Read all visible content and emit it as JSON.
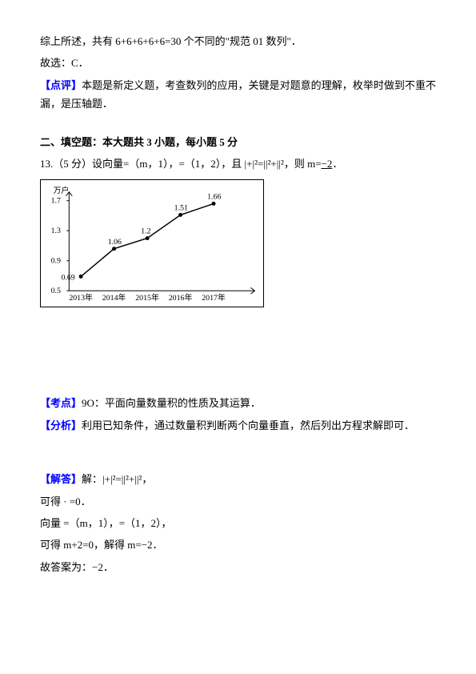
{
  "p1": "综上所述，共有 6+6+6+6+6=30 个不同的\"规范 01 数列\"．",
  "p2": "故选：C．",
  "label1": "【点评】",
  "p3": "本题是新定义题，考查数列的应用，关键是对题意的理解，枚举时做到不重不漏，是压轴题．",
  "section_num": "二、填空题：本大题共 3 小题，每小题 5 分",
  "q13_title": "13.（5 分）设向量",
  "q13_body": "=（m，1），=（1，2），且 |+|²=||²+||²，则 m=",
  "q13_answer": "−2",
  "q13_end": "．",
  "chart": {
    "type": "line",
    "ylabel": "万户",
    "x_categories": [
      "2013年",
      "2014年",
      "2015年",
      "2016年",
      "2017年"
    ],
    "y_values": [
      0.69,
      1.06,
      1.2,
      1.51,
      1.66
    ],
    "y_ticks": [
      0.5,
      0.9,
      1.3,
      1.7
    ],
    "point_color": "#000000",
    "line_color": "#000000",
    "bg_color": "#ffffff",
    "axis_fontsize": 10,
    "label_fontsize": 10,
    "plot_x_start": 50,
    "plot_x_step": 42,
    "plot_y_base": 140,
    "plot_y_scale": 95
  },
  "label2": "【考点】",
  "p4": "9O：平面向量数量积的性质及其运算．",
  "label3": "【分析】",
  "p5": "利用已知条件，通过数量积判断两个向量垂直，然后列出方程求解即可．",
  "label4": "【解答】",
  "p6": "解：|+|²=||²+||²，",
  "p7": "可得 · =0．",
  "p8": "向量 =（m，1），=（1，2），",
  "p9": "可得 m+2=0，解得 m=−2．",
  "p10": "故答案为：−2．"
}
